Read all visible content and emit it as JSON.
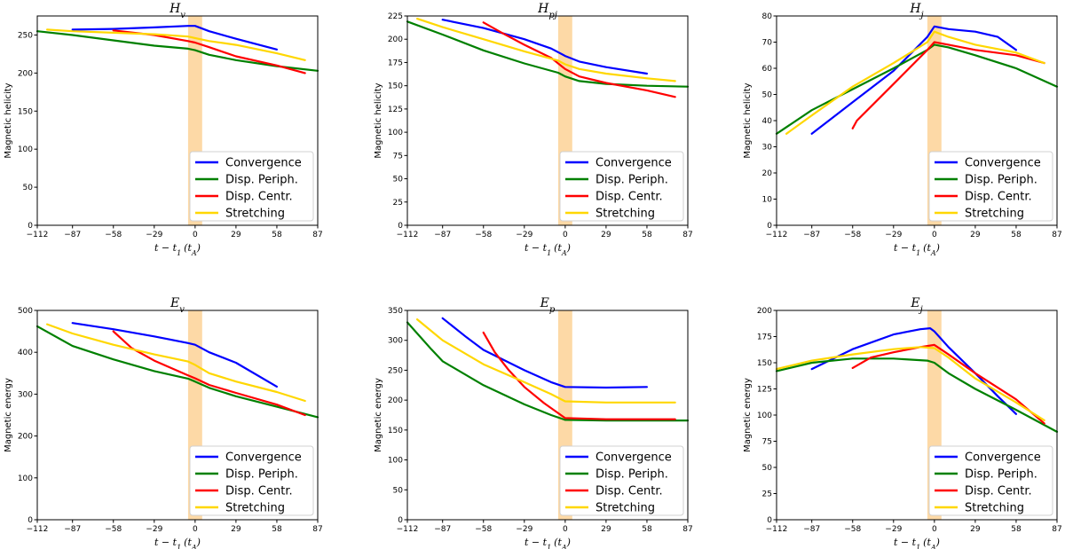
{
  "legend": [
    {
      "name": "Convergence",
      "color": "#0000ff"
    },
    {
      "name": "Disp. Periph.",
      "color": "#008000"
    },
    {
      "name": "Disp. Centr.",
      "color": "#ff0000"
    },
    {
      "name": "Stretching",
      "color": "#ffd700"
    }
  ],
  "band": {
    "color": "#fdd9a6",
    "x_range": [
      -5,
      5
    ]
  },
  "chart_data": [
    {
      "type": "line",
      "title_main": "H",
      "title_sub": "v",
      "xlabel": "t − t₁ (t_A)",
      "xlabel_main": "t − t",
      "xlabel_sub": "1",
      "xlabel_unit": "(t",
      "xlabel_unit_sub": "A",
      "xlabel_close": ")",
      "ylabel": "Magnetic helicity",
      "xlim": [
        -112,
        87
      ],
      "ylim": [
        0,
        275
      ],
      "xticks": [
        -112,
        -87,
        -58,
        -29,
        0,
        29,
        58,
        87
      ],
      "yticks": [
        0,
        50,
        100,
        150,
        200,
        250
      ],
      "series": [
        {
          "name": "Convergence",
          "x": [
            -87,
            -58,
            -29,
            -5,
            0,
            10,
            29,
            58
          ],
          "y": [
            257,
            258,
            260,
            262,
            262,
            255,
            245,
            231
          ]
        },
        {
          "name": "Disp. Periph.",
          "x": [
            -112,
            -87,
            -58,
            -29,
            -5,
            0,
            10,
            29,
            58,
            87
          ],
          "y": [
            255,
            250,
            243,
            236,
            232,
            230,
            224,
            217,
            209,
            203
          ]
        },
        {
          "name": "Disp. Centr.",
          "x": [
            -58,
            -29,
            -5,
            0,
            10,
            29,
            58,
            78
          ],
          "y": [
            256,
            250,
            242,
            240,
            234,
            222,
            210,
            200
          ]
        },
        {
          "name": "Stretching",
          "x": [
            -105,
            -87,
            -58,
            -29,
            -5,
            0,
            10,
            29,
            58,
            78
          ],
          "y": [
            257,
            255,
            253,
            251,
            248,
            246,
            242,
            237,
            226,
            217
          ]
        }
      ]
    },
    {
      "type": "line",
      "title_main": "H",
      "title_sub": "pj",
      "xlabel": "t − t₁ (t_A)",
      "xlabel_main": "t − t",
      "xlabel_sub": "1",
      "xlabel_unit": "(t",
      "xlabel_unit_sub": "A",
      "xlabel_close": ")",
      "ylabel": "Magnetic helicity",
      "xlim": [
        -112,
        87
      ],
      "ylim": [
        0,
        225
      ],
      "xticks": [
        -112,
        -87,
        -58,
        -29,
        0,
        29,
        58,
        87
      ],
      "yticks": [
        0,
        25,
        50,
        75,
        100,
        125,
        150,
        175,
        200,
        225
      ],
      "series": [
        {
          "name": "Convergence",
          "x": [
            -87,
            -58,
            -29,
            -10,
            0,
            10,
            29,
            58
          ],
          "y": [
            221,
            212,
            200,
            190,
            182,
            176,
            170,
            163
          ]
        },
        {
          "name": "Disp. Periph.",
          "x": [
            -112,
            -87,
            -58,
            -29,
            -5,
            0,
            10,
            29,
            58,
            87
          ],
          "y": [
            219,
            205,
            188,
            174,
            164,
            160,
            155,
            152,
            150,
            149
          ]
        },
        {
          "name": "Disp. Centr.",
          "x": [
            -58,
            -45,
            -29,
            -10,
            0,
            10,
            29,
            58,
            78
          ],
          "y": [
            218,
            207,
            194,
            180,
            168,
            160,
            153,
            145,
            138
          ]
        },
        {
          "name": "Stretching",
          "x": [
            -105,
            -87,
            -58,
            -29,
            -5,
            0,
            10,
            29,
            58,
            78
          ],
          "y": [
            222,
            213,
            200,
            187,
            177,
            173,
            168,
            163,
            158,
            155
          ]
        }
      ]
    },
    {
      "type": "line",
      "title_main": "H",
      "title_sub": "j",
      "xlabel": "t − t₁ (t_A)",
      "xlabel_main": "t − t",
      "xlabel_sub": "1",
      "xlabel_unit": "(t",
      "xlabel_unit_sub": "A",
      "xlabel_close": ")",
      "ylabel": "Magnetic helicity",
      "xlim": [
        -112,
        87
      ],
      "ylim": [
        0,
        80
      ],
      "xticks": [
        -112,
        -87,
        -58,
        -29,
        0,
        29,
        58,
        87
      ],
      "yticks": [
        0,
        10,
        20,
        30,
        40,
        50,
        60,
        70,
        80
      ],
      "series": [
        {
          "name": "Convergence",
          "x": [
            -87,
            -58,
            -29,
            -5,
            0,
            10,
            29,
            45,
            58
          ],
          "y": [
            35,
            47,
            59,
            72,
            76,
            75,
            74,
            72,
            67
          ]
        },
        {
          "name": "Disp. Periph.",
          "x": [
            -112,
            -87,
            -58,
            -29,
            -5,
            0,
            10,
            29,
            58,
            87
          ],
          "y": [
            35,
            44,
            52,
            60,
            67,
            69,
            68,
            65,
            60,
            53
          ]
        },
        {
          "name": "Disp. Centr.",
          "x": [
            -58,
            -55,
            -29,
            -5,
            0,
            10,
            29,
            58,
            78
          ],
          "y": [
            37,
            40,
            54,
            67,
            70,
            69,
            67,
            65,
            62
          ]
        },
        {
          "name": "Stretching",
          "x": [
            -105,
            -87,
            -58,
            -29,
            -5,
            0,
            10,
            29,
            58,
            78
          ],
          "y": [
            35,
            42,
            53,
            62,
            70,
            74,
            72,
            69,
            66,
            62
          ]
        }
      ]
    },
    {
      "type": "line",
      "title_main": "E",
      "title_sub": "v",
      "xlabel": "t − t₁ (t_A)",
      "xlabel_main": "t − t",
      "xlabel_sub": "1",
      "xlabel_unit": "(t",
      "xlabel_unit_sub": "A",
      "xlabel_close": ")",
      "ylabel": "Magnetic energy",
      "xlim": [
        -112,
        87
      ],
      "ylim": [
        0,
        500
      ],
      "xticks": [
        -112,
        -87,
        -58,
        -29,
        0,
        29,
        58,
        87
      ],
      "yticks": [
        0,
        100,
        200,
        300,
        400,
        500
      ],
      "series": [
        {
          "name": "Convergence",
          "x": [
            -87,
            -58,
            -29,
            -5,
            0,
            10,
            29,
            58
          ],
          "y": [
            470,
            455,
            438,
            422,
            418,
            400,
            375,
            318
          ]
        },
        {
          "name": "Disp. Periph.",
          "x": [
            -112,
            -87,
            -58,
            -29,
            -5,
            0,
            10,
            29,
            58,
            87
          ],
          "y": [
            462,
            415,
            383,
            355,
            337,
            330,
            315,
            295,
            270,
            245
          ]
        },
        {
          "name": "Disp. Centr.",
          "x": [
            -58,
            -45,
            -29,
            -5,
            0,
            10,
            29,
            58,
            78
          ],
          "y": [
            450,
            410,
            380,
            345,
            338,
            322,
            303,
            275,
            250
          ]
        },
        {
          "name": "Stretching",
          "x": [
            -105,
            -87,
            -58,
            -29,
            -5,
            0,
            10,
            29,
            58,
            78
          ],
          "y": [
            467,
            445,
            418,
            395,
            378,
            370,
            350,
            330,
            305,
            284
          ]
        }
      ]
    },
    {
      "type": "line",
      "title_main": "E",
      "title_sub": "p",
      "xlabel": "t − t₁ (t_A)",
      "xlabel_main": "t − t",
      "xlabel_sub": "1",
      "xlabel_unit": "(t",
      "xlabel_unit_sub": "A",
      "xlabel_close": ")",
      "ylabel": "Magnetic energy",
      "xlim": [
        -112,
        87
      ],
      "ylim": [
        0,
        350
      ],
      "xticks": [
        -112,
        -87,
        -58,
        -29,
        0,
        29,
        58,
        87
      ],
      "yticks": [
        0,
        50,
        100,
        150,
        200,
        250,
        300,
        350
      ],
      "series": [
        {
          "name": "Convergence",
          "x": [
            -87,
            -70,
            -58,
            -29,
            -10,
            0,
            29,
            58
          ],
          "y": [
            337,
            305,
            284,
            250,
            230,
            222,
            221,
            222
          ]
        },
        {
          "name": "Disp. Periph.",
          "x": [
            -112,
            -95,
            -87,
            -58,
            -29,
            -10,
            0,
            29,
            58,
            87
          ],
          "y": [
            330,
            285,
            265,
            225,
            193,
            175,
            167,
            166,
            166,
            166
          ]
        },
        {
          "name": "Disp. Centr.",
          "x": [
            -58,
            -50,
            -40,
            -29,
            -15,
            0,
            29,
            58,
            78
          ],
          "y": [
            313,
            280,
            250,
            222,
            195,
            170,
            168,
            168,
            168
          ]
        },
        {
          "name": "Stretching",
          "x": [
            -105,
            -87,
            -58,
            -29,
            -10,
            0,
            29,
            58,
            78
          ],
          "y": [
            335,
            300,
            260,
            230,
            210,
            198,
            196,
            196,
            196
          ]
        }
      ]
    },
    {
      "type": "line",
      "title_main": "E",
      "title_sub": "j",
      "xlabel": "t − t₁ (t_A)",
      "xlabel_main": "t − t",
      "xlabel_sub": "1",
      "xlabel_unit": "(t",
      "xlabel_unit_sub": "A",
      "xlabel_close": ")",
      "ylabel": "Magnetic energy",
      "xlim": [
        -112,
        87
      ],
      "ylim": [
        0,
        200
      ],
      "xticks": [
        -112,
        -87,
        -58,
        -29,
        0,
        29,
        58,
        87
      ],
      "yticks": [
        0,
        25,
        50,
        75,
        100,
        125,
        150,
        175,
        200
      ],
      "series": [
        {
          "name": "Convergence",
          "x": [
            -87,
            -58,
            -29,
            -10,
            -3,
            0,
            10,
            29,
            45,
            58
          ],
          "y": [
            144,
            163,
            177,
            182,
            183,
            180,
            165,
            140,
            118,
            101
          ]
        },
        {
          "name": "Disp. Periph.",
          "x": [
            -112,
            -87,
            -58,
            -29,
            -5,
            0,
            10,
            29,
            58,
            87
          ],
          "y": [
            142,
            150,
            154,
            154,
            152,
            150,
            140,
            125,
            105,
            84
          ]
        },
        {
          "name": "Disp. Centr.",
          "x": [
            -58,
            -45,
            -29,
            -10,
            0,
            10,
            29,
            58,
            78
          ],
          "y": [
            145,
            155,
            160,
            165,
            167,
            158,
            140,
            115,
            92
          ]
        },
        {
          "name": "Stretching",
          "x": [
            -112,
            -87,
            -58,
            -29,
            -10,
            0,
            10,
            29,
            58,
            78
          ],
          "y": [
            144,
            152,
            158,
            163,
            165,
            164,
            155,
            135,
            112,
            95
          ]
        }
      ]
    }
  ]
}
